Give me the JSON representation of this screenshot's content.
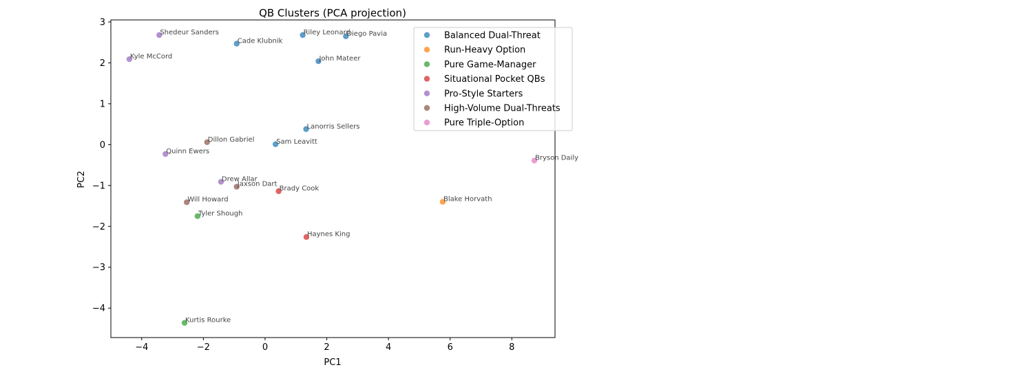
{
  "chart_data": {
    "type": "scatter",
    "title": "QB Clusters (PCA projection)",
    "xlabel": "PC1",
    "ylabel": "PC2",
    "xlim": [
      -5.0,
      9.4
    ],
    "ylim": [
      -4.72,
      3.05
    ],
    "xticks": [
      -4,
      -2,
      0,
      2,
      4,
      6,
      8
    ],
    "yticks": [
      -4,
      -3,
      -2,
      -1,
      0,
      1,
      2,
      3
    ],
    "grid": false,
    "legend_position": "top-right",
    "series": [
      {
        "name": "Balanced Dual-Threat",
        "color": "#1f77b4",
        "points": [
          {
            "label": "Riley Leonard",
            "x": 1.22,
            "y": 2.68
          },
          {
            "label": "Diego Pavia",
            "x": 2.62,
            "y": 2.65
          },
          {
            "label": "Cade Klubnik",
            "x": -0.92,
            "y": 2.47
          },
          {
            "label": "John Mateer",
            "x": 1.73,
            "y": 2.04
          },
          {
            "label": "Lanorris Sellers",
            "x": 1.33,
            "y": 0.38
          },
          {
            "label": "Sam Leavitt",
            "x": 0.34,
            "y": 0.01
          }
        ]
      },
      {
        "name": "Run-Heavy Option",
        "color": "#ff7f0e",
        "points": [
          {
            "label": "Blake Horvath",
            "x": 5.76,
            "y": -1.4
          }
        ]
      },
      {
        "name": "Pure Game-Manager",
        "color": "#2ca02c",
        "points": [
          {
            "label": "Tyler Shough",
            "x": -2.19,
            "y": -1.75
          },
          {
            "label": "Kurtis Rourke",
            "x": -2.61,
            "y": -4.36
          }
        ]
      },
      {
        "name": "Situational Pocket QBs",
        "color": "#d62728",
        "points": [
          {
            "label": "Brady Cook",
            "x": 0.44,
            "y": -1.14
          },
          {
            "label": "Haynes King",
            "x": 1.34,
            "y": -2.26
          }
        ]
      },
      {
        "name": "Pro-Style Starters",
        "color": "#9467bd",
        "points": [
          {
            "label": "Shedeur Sanders",
            "x": -3.43,
            "y": 2.68
          },
          {
            "label": "Kyle McCord",
            "x": -4.4,
            "y": 2.09
          },
          {
            "label": "Quinn Ewers",
            "x": -3.23,
            "y": -0.23
          },
          {
            "label": "Drew Allar",
            "x": -1.43,
            "y": -0.91
          }
        ]
      },
      {
        "name": "High-Volume Dual-Threats",
        "color": "#8c564b",
        "points": [
          {
            "label": "Dillon Gabriel",
            "x": -1.88,
            "y": 0.06
          },
          {
            "label": "Jaxson Dart",
            "x": -0.92,
            "y": -1.03
          },
          {
            "label": "Will Howard",
            "x": -2.54,
            "y": -1.41
          }
        ]
      },
      {
        "name": "Pure Triple-Option",
        "color": "#e377c2",
        "points": [
          {
            "label": "Bryson Daily",
            "x": 8.73,
            "y": -0.39
          }
        ]
      }
    ]
  }
}
